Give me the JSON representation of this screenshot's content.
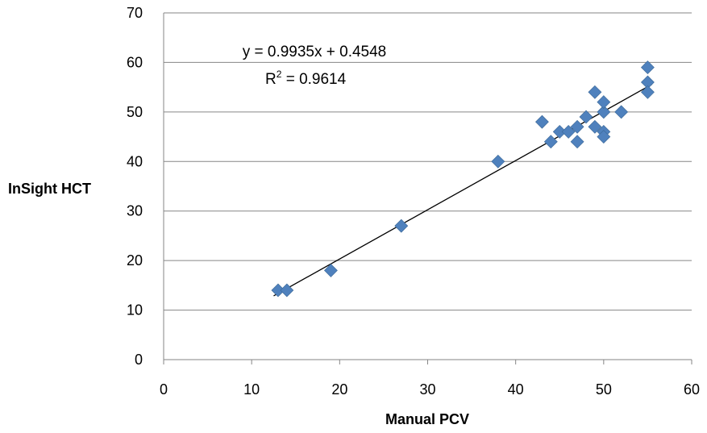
{
  "chart_data": {
    "type": "scatter",
    "title": "",
    "xlabel": "Manual PCV",
    "ylabel": "InSight HCT",
    "xlim": [
      0,
      60
    ],
    "ylim": [
      0,
      70
    ],
    "x_ticks": [
      "0",
      "10",
      "20",
      "30",
      "40",
      "50",
      "60"
    ],
    "y_ticks": [
      "0",
      "10",
      "20",
      "30",
      "40",
      "50",
      "60",
      "70"
    ],
    "grid": "horizontal",
    "marker": "diamond",
    "marker_color": "#4F81BD",
    "trendline_color": "#000000",
    "series": [
      {
        "points": [
          [
            13,
            14
          ],
          [
            14,
            14
          ],
          [
            19,
            18
          ],
          [
            27,
            27
          ],
          [
            38,
            40
          ],
          [
            43,
            48
          ],
          [
            44,
            44
          ],
          [
            45,
            46
          ],
          [
            46,
            46
          ],
          [
            47,
            44
          ],
          [
            47,
            47
          ],
          [
            48,
            49
          ],
          [
            49,
            54
          ],
          [
            49,
            47
          ],
          [
            50,
            50
          ],
          [
            50,
            52
          ],
          [
            50,
            46
          ],
          [
            50,
            45
          ],
          [
            52,
            50
          ],
          [
            55,
            59
          ],
          [
            55,
            56
          ],
          [
            55,
            54
          ]
        ]
      }
    ],
    "trendline": {
      "slope": 0.9935,
      "intercept": 0.4548,
      "x_range": [
        12.5,
        55.5
      ],
      "equation": "y = 0.9935x + 0.4548",
      "r2_prefix": "R",
      "r2_sup": "2",
      "r2_value": " = 0.9614"
    }
  }
}
